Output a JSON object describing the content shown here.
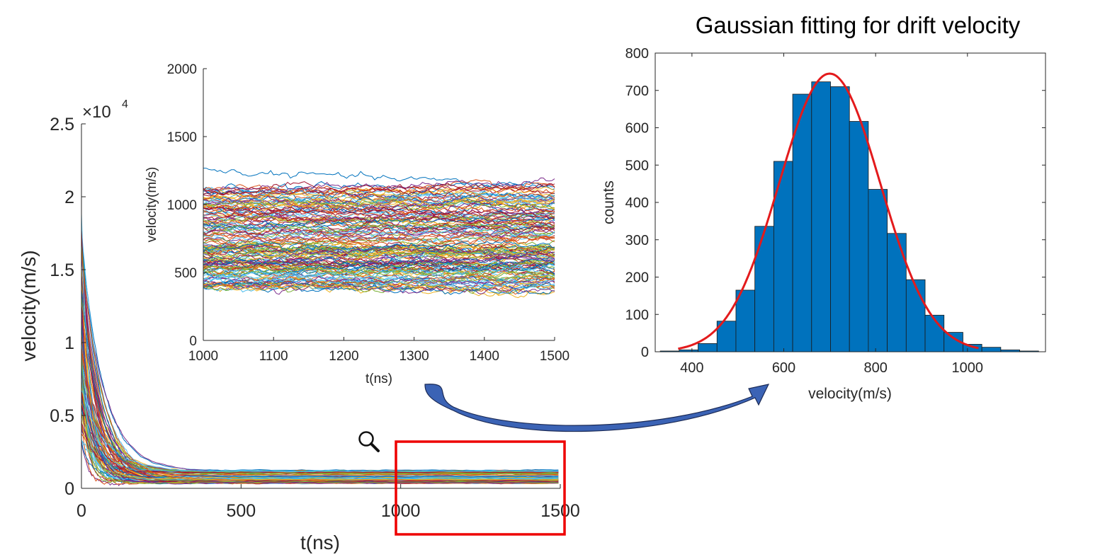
{
  "colors": {
    "bar_fill": "#0072BD",
    "bar_edge": "#1a1a1a",
    "fit_curve": "#e31a1c",
    "zoom_box": "#ee0000",
    "arrow_fill": "#3b63b5",
    "arrow_edge": "#1b2a55",
    "series_palette": [
      "#0072BD",
      "#D95319",
      "#EDB120",
      "#7E2F8E",
      "#77AC30",
      "#4DBEEE",
      "#A2142F"
    ]
  },
  "icons": {
    "zoom": "magnifier-icon",
    "arrow": "curved-arrow-icon"
  },
  "chart_data": [
    {
      "type": "line",
      "title": "",
      "xlabel": "t(ns)",
      "ylabel": "velocity(m/s)",
      "exponent_label": "×10",
      "exponent_power": "4",
      "xlim": [
        0,
        1500
      ],
      "ylim": [
        0,
        25000
      ],
      "xticks": [
        0,
        500,
        1000,
        1500
      ],
      "xtick_labels": [
        "0",
        "500",
        "1000",
        "1500"
      ],
      "yticks": [
        0,
        5000,
        10000,
        15000,
        20000,
        25000
      ],
      "ytick_labels": [
        "0",
        "0.5",
        "1",
        "1.5",
        "2",
        "2.5"
      ],
      "grid": false,
      "legend": "none",
      "zoom_region": [
        1000,
        1500
      ],
      "series_description": "about 200 individual drift-velocity traces; initial velocity up to ~23000 m/s, decaying within ~150 ns toward 400–1250 m/s",
      "series_count": 200,
      "initial_peak": 23000,
      "steady_range": [
        350,
        1250
      ]
    },
    {
      "type": "line",
      "title": "",
      "xlabel": "t(ns)",
      "ylabel": "velocity(m/s)",
      "xlim": [
        1000,
        1500
      ],
      "ylim": [
        0,
        2000
      ],
      "xticks": [
        1000,
        1100,
        1200,
        1300,
        1400,
        1500
      ],
      "xtick_labels": [
        "1000",
        "1100",
        "1200",
        "1300",
        "1400",
        "1500"
      ],
      "yticks": [
        0,
        500,
        1000,
        1500,
        2000
      ],
      "ytick_labels": [
        "0",
        "500",
        "1000",
        "1500",
        "2000"
      ],
      "grid": false,
      "legend": "none",
      "series_description": "zoomed view of the same traces between 1000 and 1500 ns; values mostly 400–1100 m/s, top trace near 1250 m/s",
      "series_count": 200,
      "steady_range": [
        350,
        1250
      ],
      "top_trace_level": 1250
    },
    {
      "type": "bar",
      "title": "Gaussian fitting for drift velocity",
      "xlabel": "velocity(m/s)",
      "ylabel": "counts",
      "xlim": [
        320,
        1170
      ],
      "ylim": [
        0,
        800
      ],
      "xticks": [
        400,
        600,
        800,
        1000
      ],
      "xtick_labels": [
        "400",
        "600",
        "800",
        "1000"
      ],
      "yticks": [
        0,
        100,
        200,
        300,
        400,
        500,
        600,
        700,
        800
      ],
      "ytick_labels": [
        "0",
        "100",
        "200",
        "300",
        "400",
        "500",
        "600",
        "700",
        "800"
      ],
      "grid": false,
      "legend": "none",
      "bin_width": 41.2,
      "bin_edges_start": 331,
      "values": [
        2,
        5,
        22,
        82,
        165,
        336,
        510,
        690,
        723,
        710,
        617,
        435,
        317,
        193,
        98,
        52,
        20,
        12,
        5,
        2
      ],
      "fit": {
        "type": "gaussian",
        "peak": 745,
        "mean": 700,
        "sigma": 110,
        "x_start": 370,
        "x_end": 1025
      }
    }
  ]
}
